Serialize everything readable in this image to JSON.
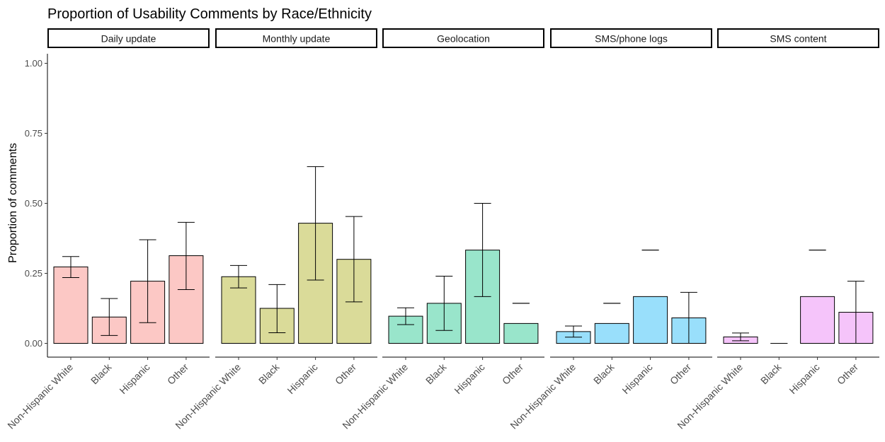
{
  "chart_data": {
    "type": "bar",
    "title": "Proportion of Usability Comments by Race/Ethnicity",
    "ylabel": "Proportion of comments",
    "xlabel": "",
    "ylim": [
      0,
      1.05
    ],
    "yticks": [
      "0.00",
      "0.25",
      "0.50",
      "0.75",
      "1.00"
    ],
    "categories": [
      "Non-Hispanic White",
      "Black",
      "Hispanic",
      "Other"
    ],
    "grid": false,
    "legend": "none",
    "panels": [
      {
        "name": "Daily update",
        "color": "#F8766D",
        "values": [
          0.273,
          0.094,
          0.222,
          0.313
        ],
        "error_low": [
          0.235,
          0.028,
          0.074,
          0.192
        ],
        "error_high": [
          0.31,
          0.16,
          0.37,
          0.432
        ]
      },
      {
        "name": "Monthly update",
        "color": "#A3A500",
        "values": [
          0.238,
          0.125,
          0.429,
          0.3
        ],
        "error_low": [
          0.198,
          0.038,
          0.226,
          0.148
        ],
        "error_high": [
          0.278,
          0.21,
          0.631,
          0.453
        ]
      },
      {
        "name": "Geolocation",
        "color": "#00BF7D",
        "values": [
          0.097,
          0.143,
          0.333,
          0.071
        ],
        "error_low": [
          0.067,
          0.046,
          0.167,
          0.143
        ],
        "error_high": [
          0.127,
          0.24,
          0.5,
          0.143
        ]
      },
      {
        "name": "SMS/phone logs",
        "color": "#00B0F6",
        "values": [
          0.042,
          0.071,
          0.167,
          0.091
        ],
        "error_low": [
          0.022,
          0.143,
          0.333,
          0.0
        ],
        "error_high": [
          0.062,
          0.143,
          0.333,
          0.182
        ]
      },
      {
        "name": "SMS content",
        "color": "#E76BF3",
        "values": [
          0.023,
          0.0,
          0.167,
          0.111
        ],
        "error_low": [
          0.009,
          0.0,
          0.333,
          0.0
        ],
        "error_high": [
          0.037,
          0.0,
          0.333,
          0.222
        ]
      }
    ]
  }
}
